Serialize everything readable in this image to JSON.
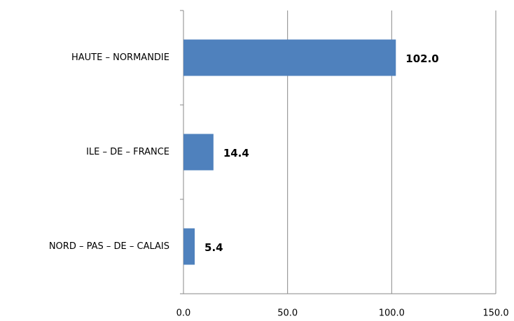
{
  "chart_data": {
    "type": "hbar",
    "categories": [
      "HAUTE – NORMANDIE",
      "ILE – DE – FRANCE",
      "NORD – PAS – DE – CALAIS"
    ],
    "values": [
      102.0,
      14.4,
      5.4
    ],
    "value_labels": [
      "102.0",
      "14.4",
      "5.4"
    ],
    "color": "#4f81bd",
    "xlim": [
      0,
      150
    ],
    "xticks": [
      {
        "value": 0,
        "label": "0.0"
      },
      {
        "value": 50,
        "label": "50.0"
      },
      {
        "value": 100,
        "label": "100.0"
      },
      {
        "value": 150,
        "label": "150.0"
      }
    ],
    "grid": true
  }
}
